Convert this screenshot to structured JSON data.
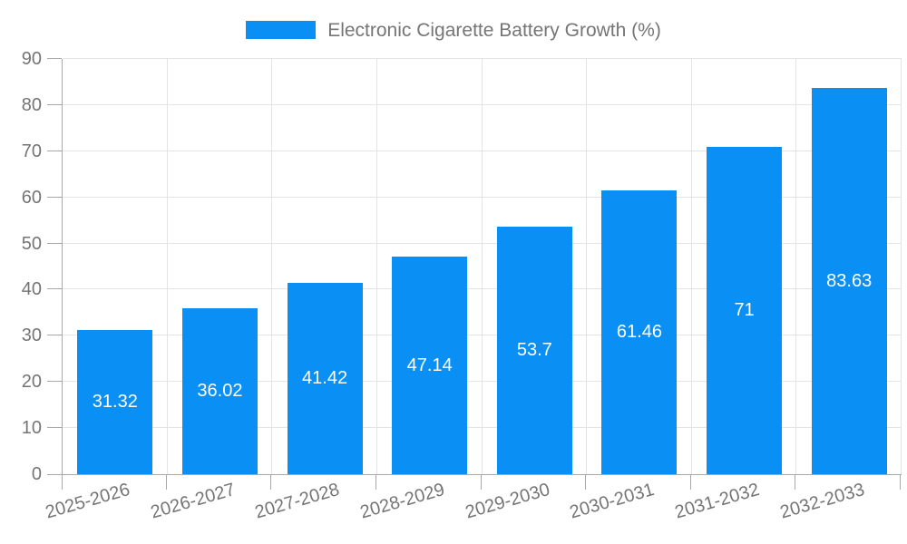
{
  "legend": {
    "label": "Electronic Cigarette Battery Growth (%)"
  },
  "chart_data": {
    "type": "bar",
    "title": "Electronic Cigarette Battery Growth (%)",
    "categories": [
      "2025-2026",
      "2026-2027",
      "2027-2028",
      "2028-2029",
      "2029-2030",
      "2030-2031",
      "2031-2032",
      "2032-2033"
    ],
    "values": [
      31.32,
      36.02,
      41.42,
      47.14,
      53.7,
      61.46,
      71,
      83.63
    ],
    "xlabel": "",
    "ylabel": "",
    "ylim": [
      0,
      90
    ],
    "yticks": [
      0,
      10,
      20,
      30,
      40,
      50,
      60,
      70,
      80,
      90
    ],
    "grid": true,
    "legend_position": "top",
    "value_labels": "inside-center",
    "colors": {
      "bar": "#0a8ff5",
      "grid": "#e4e4e4",
      "axis": "#a8a8a8",
      "text": "#757575",
      "value_label": "#ffffff"
    }
  }
}
